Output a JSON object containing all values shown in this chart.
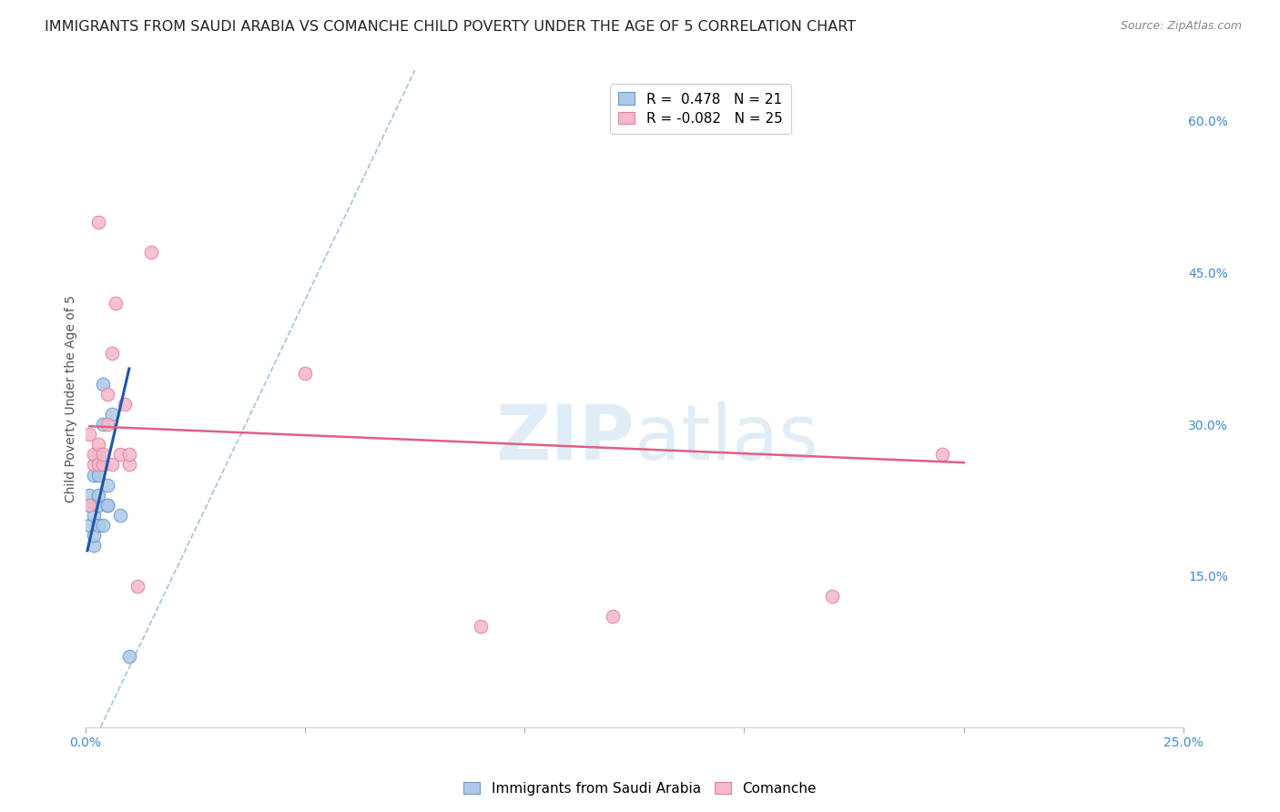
{
  "title": "IMMIGRANTS FROM SAUDI ARABIA VS COMANCHE CHILD POVERTY UNDER THE AGE OF 5 CORRELATION CHART",
  "source": "Source: ZipAtlas.com",
  "ylabel": "Child Poverty Under the Age of 5",
  "xlim": [
    0.0,
    0.25
  ],
  "ylim": [
    0.0,
    0.65
  ],
  "xticks": [
    0.0,
    0.05,
    0.1,
    0.15,
    0.2,
    0.25
  ],
  "yticks_right": [
    0.15,
    0.3,
    0.45,
    0.6
  ],
  "ytick_labels_right": [
    "15.0%",
    "30.0%",
    "45.0%",
    "60.0%"
  ],
  "legend_r1": "R =  0.478   N = 21",
  "legend_r2": "R = -0.082   N = 25",
  "blue_color": "#adc8e8",
  "blue_edge_color": "#6699cc",
  "pink_color": "#f5b8c8",
  "pink_edge_color": "#e080a0",
  "trend_blue_color": "#2255aa",
  "trend_pink_color": "#e06080",
  "dashed_color": "#99bbdd",
  "watermark_color": "#c8dff0",
  "background_color": "#ffffff",
  "grid_color": "#cccccc",
  "title_color": "#222222",
  "source_color": "#888888",
  "tick_color": "#4488cc",
  "ylabel_color": "#555555",
  "title_fontsize": 11.5,
  "source_fontsize": 9,
  "tick_fontsize": 10,
  "ylabel_fontsize": 10,
  "legend_fontsize": 11,
  "watermark_fontsize": 60,
  "scatter_size": 110,
  "blue_scatter_x": [
    0.001,
    0.001,
    0.001,
    0.002,
    0.002,
    0.002,
    0.002,
    0.003,
    0.003,
    0.003,
    0.003,
    0.003,
    0.004,
    0.004,
    0.004,
    0.005,
    0.005,
    0.005,
    0.006,
    0.008,
    0.01
  ],
  "blue_scatter_y": [
    0.2,
    0.22,
    0.23,
    0.18,
    0.19,
    0.21,
    0.25,
    0.2,
    0.22,
    0.23,
    0.25,
    0.27,
    0.2,
    0.3,
    0.34,
    0.22,
    0.22,
    0.24,
    0.31,
    0.21,
    0.07
  ],
  "pink_scatter_x": [
    0.001,
    0.001,
    0.002,
    0.002,
    0.003,
    0.003,
    0.003,
    0.004,
    0.004,
    0.005,
    0.005,
    0.006,
    0.006,
    0.007,
    0.008,
    0.009,
    0.01,
    0.01,
    0.012,
    0.015,
    0.05,
    0.09,
    0.12,
    0.17,
    0.195
  ],
  "pink_scatter_y": [
    0.22,
    0.29,
    0.26,
    0.27,
    0.26,
    0.28,
    0.5,
    0.26,
    0.27,
    0.3,
    0.33,
    0.26,
    0.37,
    0.42,
    0.27,
    0.32,
    0.26,
    0.27,
    0.14,
    0.47,
    0.35,
    0.1,
    0.11,
    0.13,
    0.27
  ],
  "blue_trend_x": [
    0.0005,
    0.01
  ],
  "blue_trend_y": [
    0.175,
    0.355
  ],
  "pink_trend_x": [
    0.001,
    0.2
  ],
  "pink_trend_y": [
    0.298,
    0.262
  ],
  "dashed_line_x": [
    -0.002,
    0.075
  ],
  "dashed_line_y": [
    -0.05,
    0.65
  ]
}
